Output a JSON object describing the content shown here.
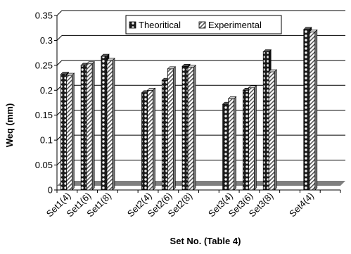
{
  "chart_data": {
    "type": "bar",
    "title": "",
    "xlabel": "Set No. (Table 4)",
    "ylabel": "Weq (mm)",
    "ylim": [
      0,
      0.35
    ],
    "ytick_step": 0.05,
    "yticks": [
      "0",
      "0.05",
      "0.1",
      "0.15",
      "0.2",
      "0.25",
      "0.3",
      "0.35"
    ],
    "grid": true,
    "legend_position": "top-right",
    "slots": [
      "Set1(4)",
      "Set1(6)",
      "Set1(8)",
      "",
      "Set2(4)",
      "Set2(6)",
      "Set2(8)",
      "",
      "Set3(4)",
      "Set3(6)",
      "Set3(8)",
      "",
      "Set4(4)",
      ""
    ],
    "categories": [
      "Set1(4)",
      "Set1(6)",
      "Set1(8)",
      "Set2(4)",
      "Set2(6)",
      "Set2(8)",
      "Set3(4)",
      "Set3(6)",
      "Set3(8)",
      "Set4(4)"
    ],
    "series": [
      {
        "name": "Theoritical",
        "pattern": "dark-dots",
        "color": "#222222",
        "values": [
          0.232,
          0.25,
          0.268,
          0.195,
          0.22,
          0.248,
          0.172,
          0.2,
          0.277,
          0.322
        ]
      },
      {
        "name": "Experimental",
        "pattern": "diagonal-hatch",
        "color": "#555555",
        "values": [
          0.23,
          0.253,
          0.26,
          0.2,
          0.243,
          0.246,
          0.183,
          0.205,
          0.237,
          0.317
        ]
      }
    ]
  },
  "colors": {
    "floor": "#808080",
    "grid": "#000000",
    "bar_outline": "#000000"
  }
}
